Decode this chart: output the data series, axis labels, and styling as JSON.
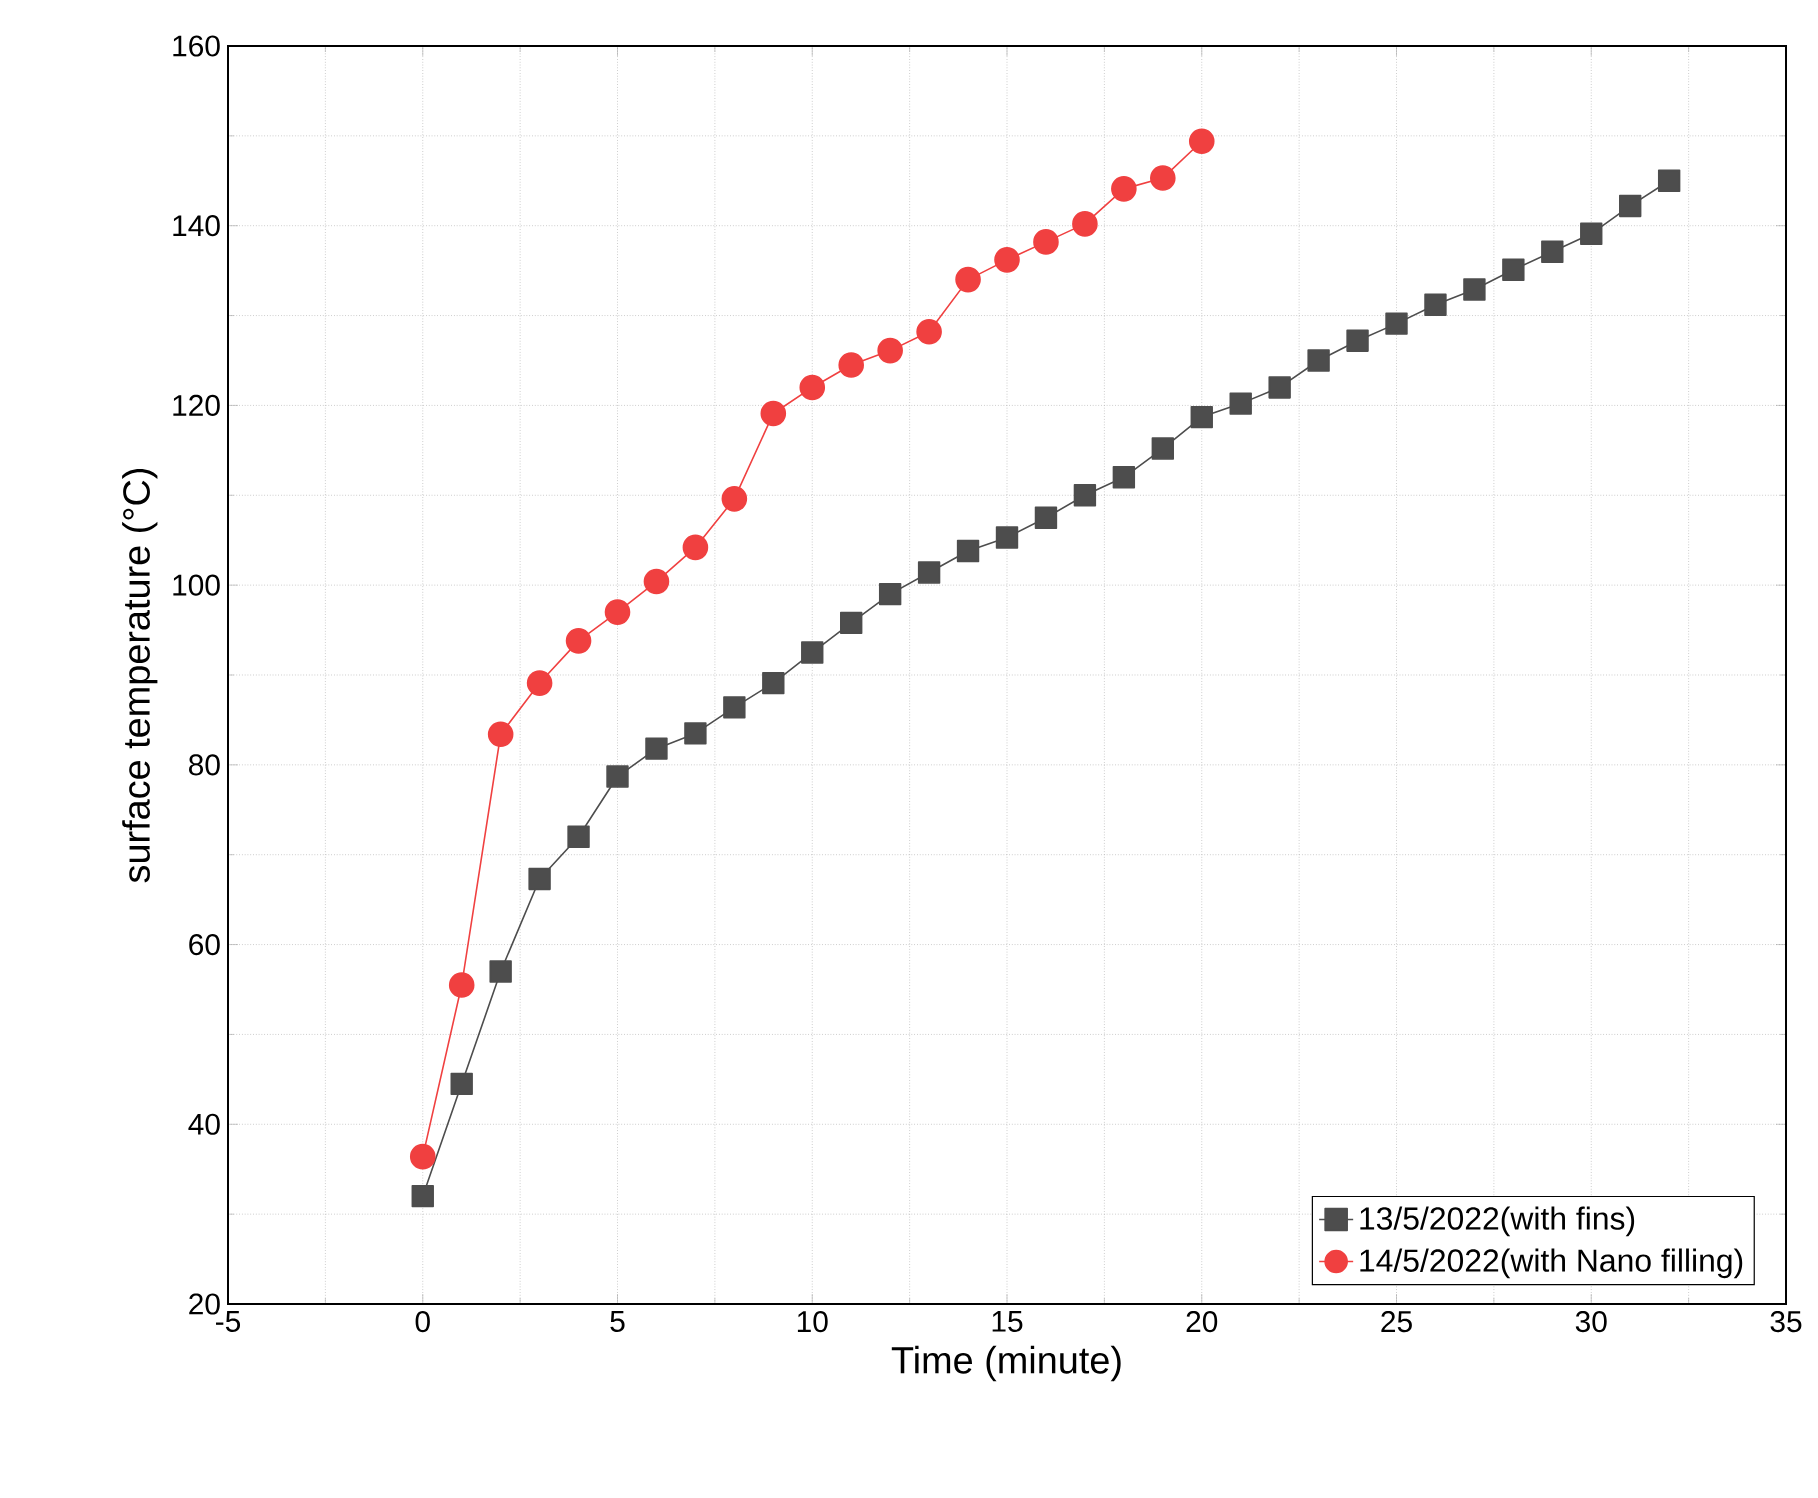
{
  "chart_data": {
    "type": "line",
    "xlabel": "Time (minute)",
    "ylabel": "surface temperature (°C)",
    "xlim": [
      -5,
      35
    ],
    "xticks": [
      -5,
      0,
      5,
      10,
      15,
      20,
      25,
      30,
      35
    ],
    "ylim": [
      20,
      160
    ],
    "yticks": [
      20,
      40,
      60,
      80,
      100,
      120,
      140,
      160
    ],
    "grid": true,
    "legend": "bottom right",
    "line_style": "solid",
    "series": [
      {
        "name": "13/5/2022(with fins)",
        "color": "#4d4d4d",
        "marker": "square",
        "x": [
          0,
          1,
          2,
          3,
          4,
          5,
          6,
          7,
          8,
          9,
          10,
          11,
          12,
          13,
          14,
          15,
          16,
          17,
          18,
          19,
          20,
          21,
          22,
          23,
          24,
          25,
          26,
          27,
          28,
          29,
          30,
          31,
          32
        ],
        "values": [
          32.0,
          44.5,
          57.0,
          67.3,
          72.0,
          78.7,
          81.8,
          83.5,
          86.4,
          89.1,
          92.5,
          95.8,
          99.0,
          101.4,
          103.8,
          105.3,
          107.5,
          110.0,
          112.0,
          115.2,
          118.7,
          120.2,
          122.0,
          125.0,
          127.2,
          129.1,
          131.2,
          132.9,
          135.1,
          137.1,
          139.1,
          142.2,
          145.0
        ]
      },
      {
        "name": "14/5/2022(with Nano filling)",
        "color": "#f04040",
        "marker": "circle",
        "x": [
          0,
          1,
          2,
          3,
          4,
          5,
          6,
          7,
          8,
          9,
          10,
          11,
          12,
          13,
          14,
          15,
          16,
          17,
          18,
          19,
          20
        ],
        "values": [
          36.4,
          55.5,
          83.4,
          89.1,
          93.8,
          97.0,
          100.4,
          104.2,
          109.6,
          119.1,
          122.0,
          124.5,
          126.1,
          128.2,
          134.0,
          136.2,
          138.2,
          140.2,
          144.1,
          145.3,
          149.4
        ]
      }
    ]
  }
}
